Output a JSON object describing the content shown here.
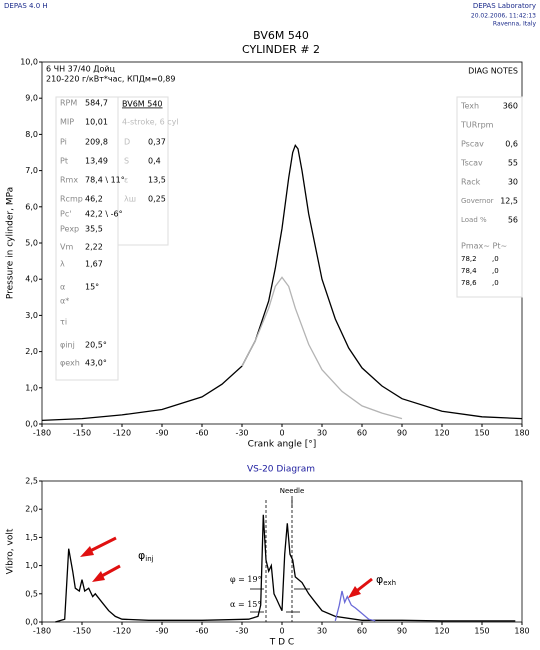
{
  "header": {
    "left": "DEPAS 4.0 H",
    "right": [
      "DEPAS Laboratory",
      "20.02.2006, 11:42:13",
      "Ravenna, Italy"
    ]
  },
  "chart_data": [
    {
      "type": "line",
      "title": "BV6M 540",
      "subtitle": "CYLINDER # 2",
      "x_label": "Crank angle [°]",
      "y_label": "Pressure in cylinder, MPa",
      "notes": [
        "6 ЧН 37/40 Дойц",
        "210-220 г/кВт*час, КПДм=0,89"
      ],
      "corner_note": "DIAG NOTES",
      "xlim": [
        -180,
        180
      ],
      "xticks": [
        -180,
        -150,
        -120,
        -90,
        -60,
        -30,
        0,
        30,
        60,
        90,
        120,
        150,
        180
      ],
      "ylim": [
        0,
        10
      ],
      "yticks": [
        {
          "value": 0,
          "label": "0,0"
        },
        {
          "value": 1,
          "label": "1,0"
        },
        {
          "value": 2,
          "label": "2,0"
        },
        {
          "value": 3,
          "label": "3,0"
        },
        {
          "value": 4,
          "label": "4,0"
        },
        {
          "value": 5,
          "label": "5,0"
        },
        {
          "value": 6,
          "label": "6,0"
        },
        {
          "value": 7,
          "label": "7,0"
        },
        {
          "value": 8,
          "label": "8,0"
        },
        {
          "value": 9,
          "label": "9,0"
        },
        {
          "value": 10,
          "label": "10,0"
        }
      ],
      "series": [
        {
          "color": "#000000",
          "x": [
            -180,
            -150,
            -120,
            -90,
            -60,
            -45,
            -30,
            -20,
            -10,
            -5,
            0,
            5,
            8,
            10,
            12,
            15,
            20,
            30,
            40,
            50,
            60,
            75,
            90,
            120,
            150,
            180
          ],
          "values": [
            0.1,
            0.15,
            0.25,
            0.4,
            0.75,
            1.1,
            1.6,
            2.3,
            3.4,
            4.3,
            5.4,
            6.8,
            7.5,
            7.7,
            7.6,
            7.0,
            5.8,
            4.0,
            2.9,
            2.1,
            1.55,
            1.05,
            0.7,
            0.35,
            0.2,
            0.15
          ]
        },
        {
          "color": "#b4b4b4",
          "x": [
            -30,
            -20,
            -10,
            -5,
            0,
            5,
            10,
            20,
            30,
            45,
            60,
            75,
            90
          ],
          "values": [
            1.6,
            2.3,
            3.2,
            3.8,
            4.05,
            3.8,
            3.2,
            2.2,
            1.5,
            0.9,
            0.5,
            0.3,
            0.15
          ]
        }
      ]
    },
    {
      "type": "line",
      "title": "VS-20 Diagram",
      "x_label": "T D C",
      "y_label": "Vibro, volt",
      "annotations": {
        "needle": "Needle",
        "phi": "φ = 19°",
        "alpha": "α = 15°",
        "inj": {
          "symbol": "φ",
          "sub": "inj"
        },
        "exh": {
          "symbol": "φ",
          "sub": "exh"
        }
      },
      "xlim": [
        -180,
        180
      ],
      "xticks": [
        -180,
        -150,
        -120,
        -90,
        -60,
        -30,
        0,
        30,
        60,
        90,
        120,
        150,
        180
      ],
      "ylim": [
        0,
        2.5
      ],
      "yticks": [
        {
          "value": 0,
          "label": "0,0"
        },
        {
          "value": 0.5,
          "label": "0,5"
        },
        {
          "value": 1,
          "label": "1,0"
        },
        {
          "value": 1.5,
          "label": "1,5"
        },
        {
          "value": 2,
          "label": "2,0"
        },
        {
          "value": 2.5,
          "label": "2,5"
        }
      ],
      "series": [
        {
          "color": "#000000",
          "x": [
            -170,
            -163,
            -160,
            -157,
            -155,
            -152,
            -150,
            -148,
            -145,
            -142,
            -140,
            -135,
            -130,
            -125,
            -120,
            -100,
            -80,
            -60,
            -40,
            -25,
            -18,
            -16,
            -14,
            -12,
            -10,
            -8,
            -6,
            -4,
            -2,
            0,
            2,
            4,
            6,
            8,
            10,
            15,
            20,
            25,
            30,
            40,
            60,
            90,
            120,
            150,
            175
          ],
          "values": [
            0,
            0.05,
            1.3,
            0.9,
            0.6,
            0.55,
            0.75,
            0.55,
            0.6,
            0.45,
            0.5,
            0.35,
            0.2,
            0.1,
            0.05,
            0.03,
            0.03,
            0.03,
            0.04,
            0.05,
            0.1,
            0.3,
            1.9,
            1.1,
            0.9,
            1.0,
            0.5,
            0.4,
            0.3,
            0.2,
            1.2,
            1.75,
            1.2,
            1.1,
            0.8,
            0.7,
            0.5,
            0.35,
            0.2,
            0.1,
            0.03,
            0.03,
            0.02,
            0.02,
            0.02
          ]
        },
        {
          "color": "#6a6ad8",
          "x": [
            40,
            43,
            45,
            47,
            49,
            52,
            55,
            60,
            65,
            70
          ],
          "values": [
            0.02,
            0.3,
            0.55,
            0.35,
            0.45,
            0.3,
            0.25,
            0.15,
            0.05,
            0.02
          ]
        }
      ]
    }
  ],
  "panels": {
    "left": [
      [
        "RPM",
        "584,7"
      ],
      [
        "MIP",
        "10,01"
      ],
      [
        "Pi",
        "209,8"
      ],
      [
        "Pt",
        "13,49"
      ],
      [
        "Rmx",
        "78,4 \\ 11°"
      ],
      [
        "Rcmp",
        "46,2"
      ],
      [
        "Pc'",
        "42,2 \\ -6°"
      ],
      [
        "Pexp",
        "35,5"
      ],
      [
        "Vm",
        "2,22"
      ],
      [
        "λ",
        "1,67"
      ],
      [
        "α",
        "15°"
      ],
      [
        "α*"
      ],
      [
        "τi"
      ],
      [
        "φinj",
        "20,5°"
      ],
      [
        "φexh",
        "43,0°"
      ]
    ],
    "engine": {
      "title": "BV6M 540",
      "subtitle": "4-stroke, 6 cyl",
      "rows": [
        [
          "D",
          "0,37"
        ],
        [
          "S",
          "0,4"
        ],
        [
          "ε",
          "13,5"
        ],
        [
          "λш",
          "0,25"
        ]
      ]
    },
    "right": {
      "rows": [
        [
          "Texh",
          "360"
        ],
        [
          "TURrpm"
        ],
        [
          "Pscav",
          "0,6"
        ],
        [
          "Tscav",
          "55"
        ],
        [
          "Rack",
          "30"
        ],
        [
          "Governor",
          "12,5"
        ],
        [
          "Load %",
          "56"
        ]
      ],
      "table_header": "Pmax~ Pt~",
      "table": [
        [
          "78,2",
          ",0"
        ],
        [
          "78,4",
          ",0"
        ],
        [
          "78,6",
          ",0"
        ]
      ]
    }
  }
}
